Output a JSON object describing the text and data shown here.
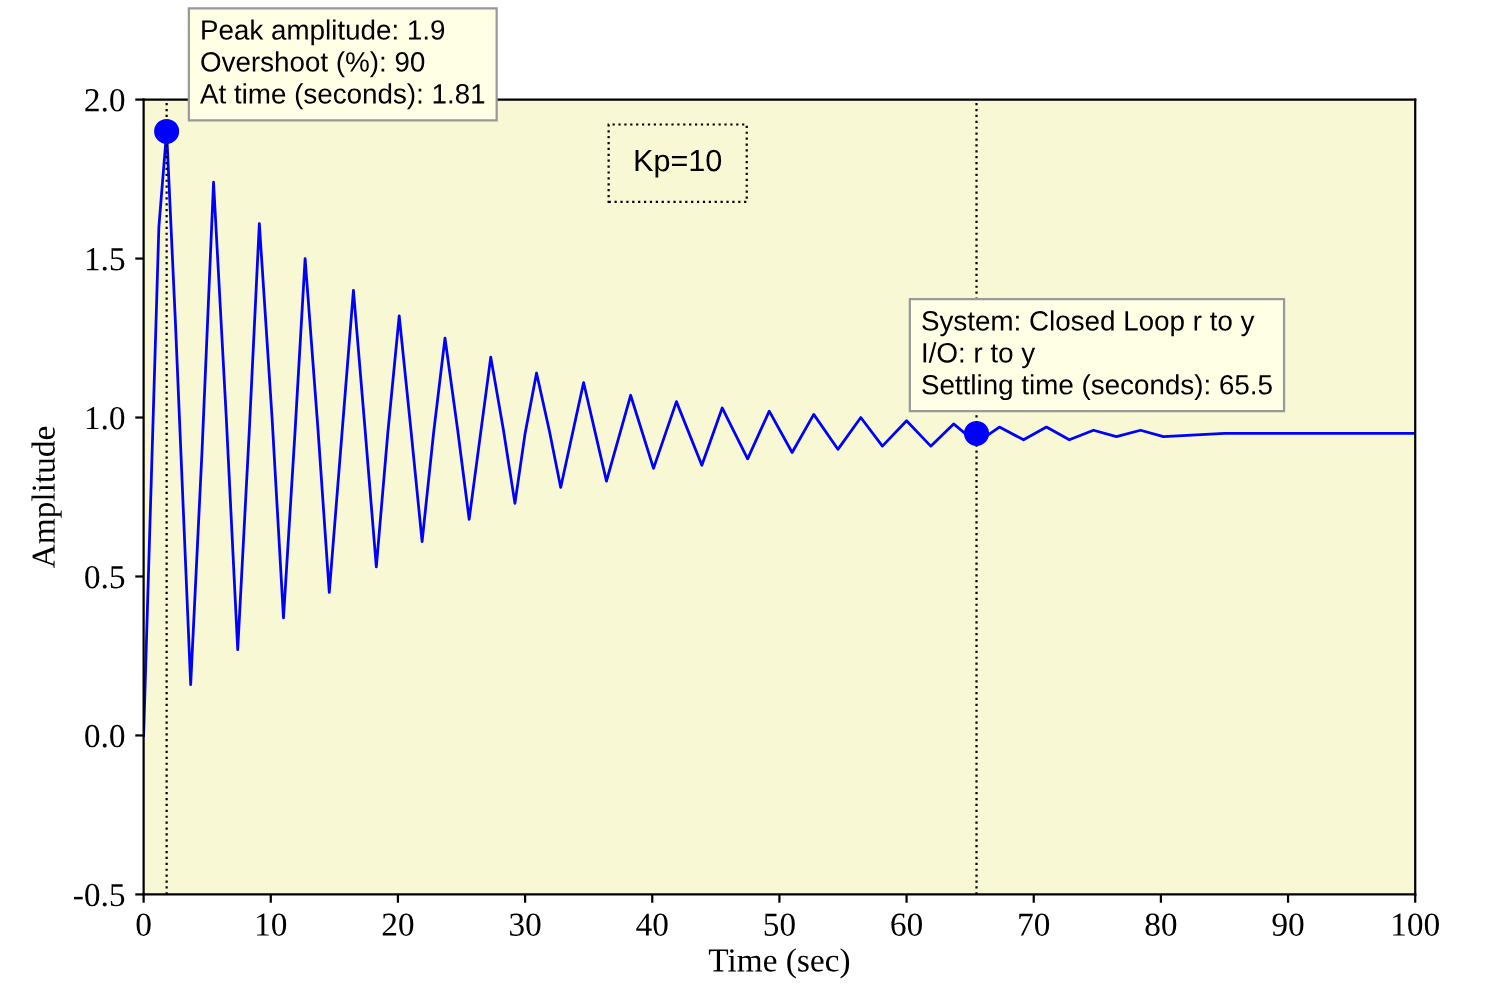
{
  "chart_data": {
    "type": "line",
    "xlabel": "Time (sec)",
    "ylabel": "Amplitude",
    "series": [
      {
        "color": "#0000ff",
        "x": [
          0,
          0.6,
          1.2,
          1.81,
          2.5,
          3.7,
          4.6,
          5.5,
          6.5,
          7.4,
          8.3,
          9.1,
          10.1,
          11.0,
          11.9,
          12.7,
          13.7,
          14.6,
          15.6,
          16.5,
          17.4,
          18.3,
          19.2,
          20.1,
          21.0,
          21.9,
          22.8,
          23.7,
          24.7,
          25.6,
          26.5,
          27.3,
          28.3,
          29.2,
          30.0,
          30.9,
          31.9,
          32.8,
          34.6,
          36.4,
          38.3,
          40.1,
          41.9,
          43.9,
          45.5,
          47.5,
          49.2,
          51.0,
          52.7,
          54.6,
          56.4,
          58.1,
          60.0,
          61.9,
          63.7,
          65.5,
          67.3,
          69.2,
          71.0,
          72.8,
          74.7,
          76.5,
          78.4,
          80.2,
          85,
          90,
          95,
          100
        ],
        "values": [
          0,
          0.8,
          1.6,
          1.9,
          1.3,
          0.16,
          0.9,
          1.74,
          1.0,
          0.27,
          0.95,
          1.61,
          1.0,
          0.37,
          0.95,
          1.5,
          0.97,
          0.45,
          0.95,
          1.4,
          0.97,
          0.53,
          0.95,
          1.32,
          0.97,
          0.61,
          0.95,
          1.25,
          0.96,
          0.68,
          0.95,
          1.19,
          0.96,
          0.73,
          0.95,
          1.14,
          0.96,
          0.78,
          1.11,
          0.8,
          1.07,
          0.84,
          1.05,
          0.85,
          1.03,
          0.87,
          1.02,
          0.89,
          1.01,
          0.9,
          1.0,
          0.91,
          0.99,
          0.91,
          0.98,
          0.92,
          0.97,
          0.93,
          0.97,
          0.93,
          0.96,
          0.94,
          0.96,
          0.94,
          0.95,
          0.95,
          0.95,
          0.95
        ]
      }
    ],
    "xlim": [
      0,
      100
    ],
    "xticks": [
      0,
      10,
      20,
      30,
      40,
      50,
      60,
      70,
      80,
      90,
      100
    ],
    "ylim": [
      -0.5,
      2.0
    ],
    "yticks": [
      {
        "value": -0.5,
        "label": "-0.5"
      },
      {
        "value": 0,
        "label": "0.0"
      },
      {
        "value": 0.5,
        "label": "0.5"
      },
      {
        "value": 1.0,
        "label": "1.0"
      },
      {
        "value": 1.5,
        "label": "1.5"
      },
      {
        "value": 2.0,
        "label": "2.0"
      }
    ],
    "ref_lines": [
      {
        "axis": "x",
        "value": 65.5,
        "color": "#000000",
        "line_style": "dotted"
      },
      {
        "axis": "x",
        "value": 1.81,
        "color": "#000000",
        "line_style": "dotted"
      }
    ],
    "annotations": [
      {
        "text": "Peak amplitude: 1.9\nOvershoot (%): 90\nAt time (seconds): 1.81",
        "x": 1.81,
        "y": 1.9
      },
      {
        "text": "System: Closed Loop r to y\nI/O: r to y\nSettling time (seconds): 65.5",
        "x": 65.5,
        "y": 0.95
      },
      "Kp=10"
    ],
    "grid": false,
    "legend": false
  }
}
